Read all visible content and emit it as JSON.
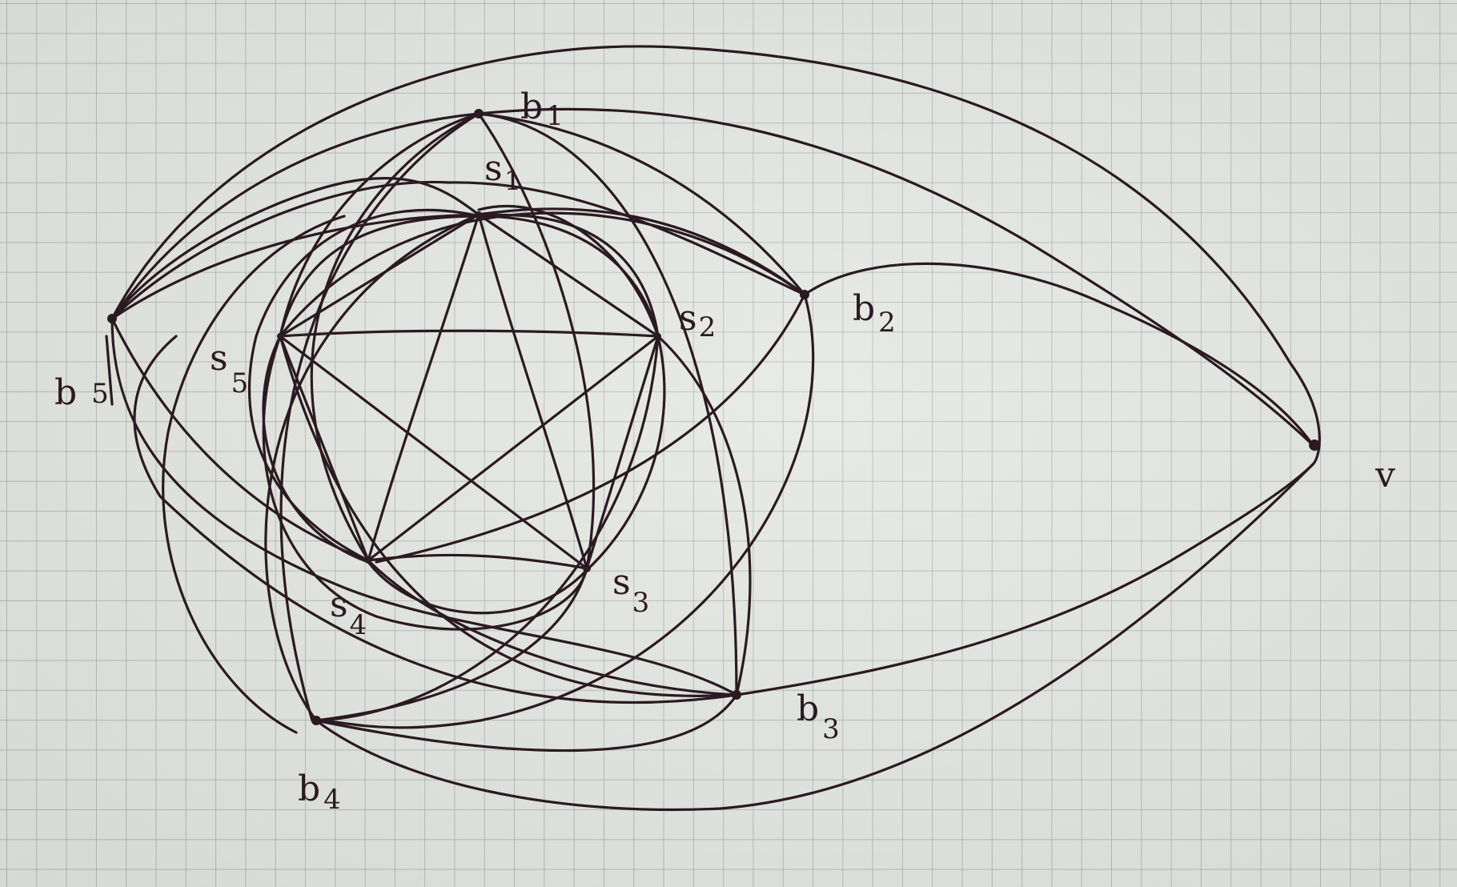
{
  "vertices": {
    "b1": {
      "letter": "b",
      "index": "1"
    },
    "b2": {
      "letter": "b",
      "index": "2"
    },
    "b3": {
      "letter": "b",
      "index": "3"
    },
    "b4": {
      "letter": "b",
      "index": "4"
    },
    "b5": {
      "letter": "b",
      "index": "5"
    },
    "s1": {
      "letter": "s",
      "index": "1"
    },
    "s2": {
      "letter": "s",
      "index": "2"
    },
    "s3": {
      "letter": "s",
      "index": "3"
    },
    "s4": {
      "letter": "s",
      "index": "4"
    },
    "s5": {
      "letter": "s",
      "index": "5"
    },
    "v": {
      "letter": "v",
      "index": ""
    }
  }
}
